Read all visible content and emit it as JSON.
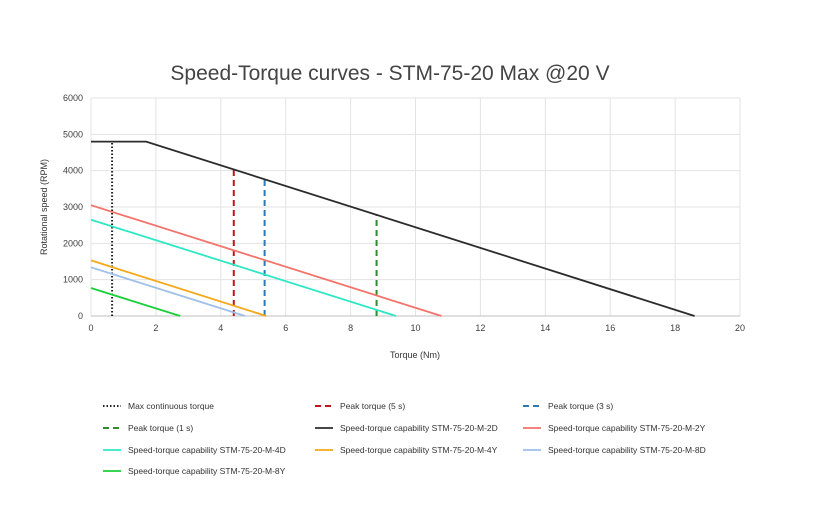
{
  "chart_data": {
    "type": "line",
    "title": "Speed-Torque curves - STM-75-20 Max @20 V",
    "xlabel": "Torque (Nm)",
    "ylabel": "Rotational speed (RPM)",
    "xlim": [
      0,
      20
    ],
    "ylim": [
      0,
      6000
    ],
    "xticks": [
      "0",
      "2",
      "4",
      "6",
      "8",
      "10",
      "12",
      "14",
      "16",
      "18",
      "20"
    ],
    "yticks": [
      "0",
      "1000",
      "2000",
      "3000",
      "4000",
      "5000",
      "6000"
    ],
    "grid": true,
    "legend_position": "bottom",
    "series": [
      {
        "name": "Max continuous torque",
        "color": "#222222",
        "style": "dotted",
        "points": [
          [
            0.65,
            0
          ],
          [
            0.65,
            4800
          ]
        ]
      },
      {
        "name": "Peak torque (5 s)",
        "color": "#c0161b",
        "style": "dashed",
        "points": [
          [
            4.4,
            0
          ],
          [
            4.4,
            4050
          ]
        ]
      },
      {
        "name": "Peak torque (3 s)",
        "color": "#2e78b3",
        "style": "dashed",
        "points": [
          [
            5.35,
            0
          ],
          [
            5.35,
            3800
          ]
        ]
      },
      {
        "name": "Peak torque (1 s)",
        "color": "#2e8b2e",
        "style": "dashed",
        "points": [
          [
            8.8,
            0
          ],
          [
            8.8,
            2800
          ]
        ]
      },
      {
        "name": "Speed-torque capability STM-75-20-M-2D",
        "color": "#2b2b2b",
        "style": "solid",
        "points": [
          [
            0,
            4800
          ],
          [
            1.7,
            4800
          ],
          [
            18.6,
            0
          ]
        ]
      },
      {
        "name": "Speed-torque capability STM-75-20-M-2Y",
        "color": "#f4736b",
        "style": "solid",
        "points": [
          [
            0,
            3050
          ],
          [
            10.8,
            0
          ]
        ]
      },
      {
        "name": "Speed-torque capability STM-75-20-M-4D",
        "color": "#2ee8c4",
        "style": "solid",
        "points": [
          [
            0,
            2650
          ],
          [
            9.4,
            0
          ]
        ]
      },
      {
        "name": "Speed-torque capability STM-75-20-M-4Y",
        "color": "#f5a91a",
        "style": "solid",
        "points": [
          [
            0,
            1530
          ],
          [
            5.4,
            0
          ]
        ]
      },
      {
        "name": "Speed-torque capability STM-75-20-M-8D",
        "color": "#9ec0ea",
        "style": "solid",
        "points": [
          [
            0,
            1340
          ],
          [
            4.75,
            0
          ]
        ]
      },
      {
        "name": "Speed-torque capability STM-75-20-M-8Y",
        "color": "#1bcf3a",
        "style": "solid",
        "points": [
          [
            0,
            770
          ],
          [
            2.75,
            0
          ]
        ]
      }
    ]
  },
  "colors": {
    "grid": "#e3e3e3",
    "axis": "#bfbfbf"
  }
}
